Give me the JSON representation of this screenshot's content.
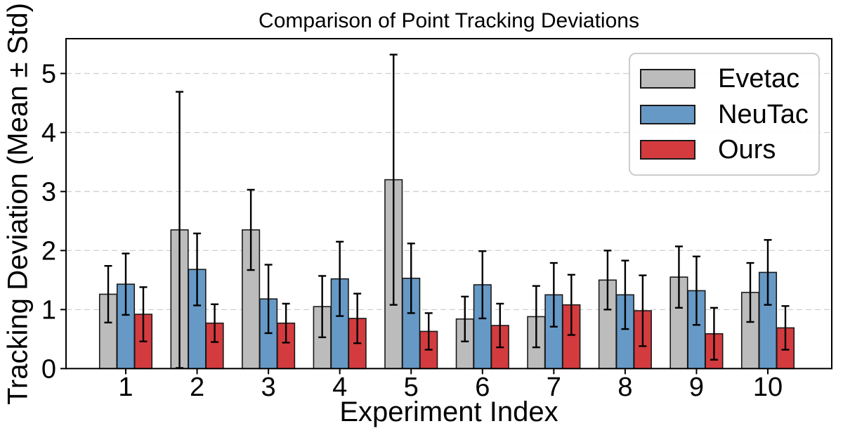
{
  "chart_data": {
    "type": "bar",
    "title": "Comparison of Point Tracking Deviations",
    "xlabel": "Experiment Index",
    "ylabel": "Tracking Deviation (Mean ± Std)",
    "categories": [
      "1",
      "2",
      "3",
      "4",
      "5",
      "6",
      "7",
      "8",
      "9",
      "10"
    ],
    "yticks": [
      0,
      1,
      2,
      3,
      4,
      5
    ],
    "ylim": [
      0,
      5.59
    ],
    "grid": "horizontal-dashed",
    "legend_position": "upper right",
    "error_bars": "mean +/- std, black with caps",
    "series": [
      {
        "name": "Evetac",
        "color": "#bcbcbc",
        "means": [
          1.26,
          2.35,
          2.35,
          1.05,
          3.2,
          0.84,
          0.88,
          1.5,
          1.55,
          1.29
        ],
        "stds": [
          0.48,
          2.34,
          0.68,
          0.52,
          2.12,
          0.38,
          0.52,
          0.5,
          0.52,
          0.5
        ]
      },
      {
        "name": "NeuTac",
        "color": "#6699c6",
        "means": [
          1.43,
          1.68,
          1.18,
          1.52,
          1.53,
          1.42,
          1.25,
          1.25,
          1.32,
          1.63
        ],
        "stds": [
          0.52,
          0.61,
          0.58,
          0.63,
          0.59,
          0.57,
          0.54,
          0.58,
          0.58,
          0.55
        ]
      },
      {
        "name": "Ours",
        "color": "#d43b3f",
        "means": [
          0.92,
          0.77,
          0.77,
          0.85,
          0.63,
          0.73,
          1.08,
          0.98,
          0.59,
          0.69
        ],
        "stds": [
          0.46,
          0.32,
          0.33,
          0.42,
          0.31,
          0.37,
          0.51,
          0.6,
          0.44,
          0.37
        ]
      }
    ],
    "styles": {
      "bar_edge_color": "#1a1a1a",
      "error_bar_color": "#000000",
      "grid_color": "#cfcfcf",
      "spine_color": "#000000",
      "background": "#ffffff"
    }
  }
}
